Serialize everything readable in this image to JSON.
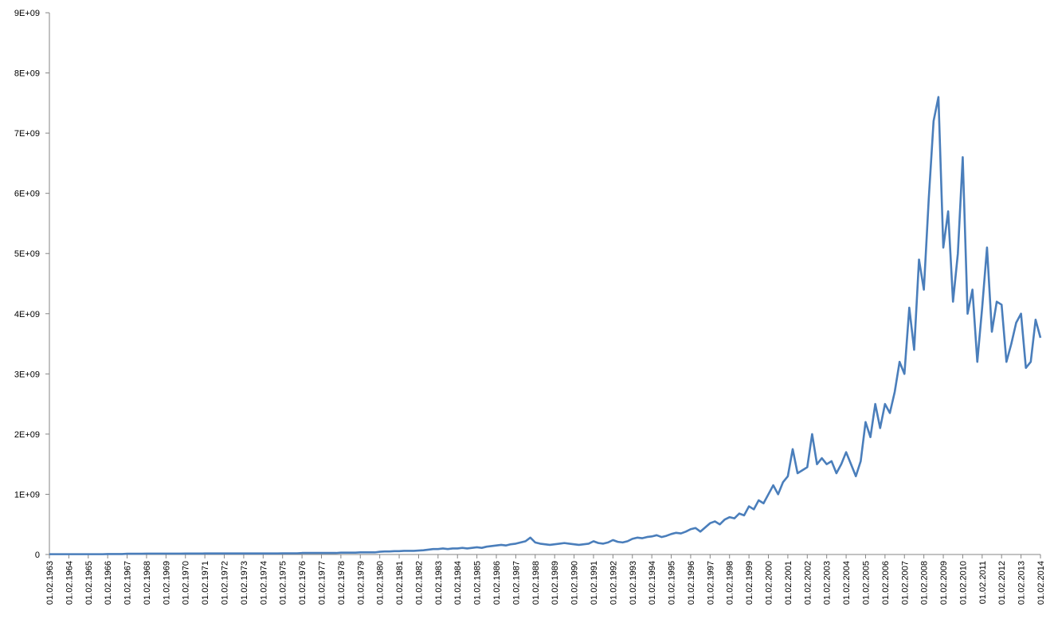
{
  "chart_data": {
    "type": "line",
    "categories": [
      "01.02.1963",
      null,
      null,
      null,
      "01.02.1964",
      null,
      null,
      null,
      "01.02.1965",
      null,
      null,
      null,
      "01.02.1966",
      null,
      null,
      null,
      "01.02.1967",
      null,
      null,
      null,
      "01.02.1968",
      null,
      null,
      null,
      "01.02.1969",
      null,
      null,
      null,
      "01.02.1970",
      null,
      null,
      null,
      "01.02.1971",
      null,
      null,
      null,
      "01.02.1972",
      null,
      null,
      null,
      "01.02.1973",
      null,
      null,
      null,
      "01.02.1974",
      null,
      null,
      null,
      "01.02.1975",
      null,
      null,
      null,
      "01.02.1976",
      null,
      null,
      null,
      "01.02.1977",
      null,
      null,
      null,
      "01.02.1978",
      null,
      null,
      null,
      "01.02.1979",
      null,
      null,
      null,
      "01.02.1980",
      null,
      null,
      null,
      "01.02.1981",
      null,
      null,
      null,
      "01.02.1982",
      null,
      null,
      null,
      "01.02.1983",
      null,
      null,
      null,
      "01.02.1984",
      null,
      null,
      null,
      "01.02.1985",
      null,
      null,
      null,
      "01.02.1986",
      null,
      null,
      null,
      "01.02.1987",
      null,
      null,
      null,
      "01.02.1988",
      null,
      null,
      null,
      "01.02.1989",
      null,
      null,
      null,
      "01.02.1990",
      null,
      null,
      null,
      "01.02.1991",
      null,
      null,
      null,
      "01.02.1992",
      null,
      null,
      null,
      "01.02.1993",
      null,
      null,
      null,
      "01.02.1994",
      null,
      null,
      null,
      "01.02.1995",
      null,
      null,
      null,
      "01.02.1996",
      null,
      null,
      null,
      "01.02.1997",
      null,
      null,
      null,
      "01.02.1998",
      null,
      null,
      null,
      "01.02.1999",
      null,
      null,
      null,
      "01.02.2000",
      null,
      null,
      null,
      "01.02.2001",
      null,
      null,
      null,
      "01.02.2002",
      null,
      null,
      null,
      "01.02.2003",
      null,
      null,
      null,
      "01.02.2004",
      null,
      null,
      null,
      "01.02.2005",
      null,
      null,
      null,
      "01.02.2006",
      null,
      null,
      null,
      "01.02.2007",
      null,
      null,
      null,
      "01.02.2008",
      null,
      null,
      null,
      "01.02.2009",
      null,
      null,
      null,
      "01.02.2010",
      null,
      null,
      null,
      "01.02.2011",
      null,
      null,
      null,
      "01.02.2012",
      null,
      null,
      null,
      "01.02.2013",
      null,
      null,
      null,
      "01.02.2014"
    ],
    "series": [
      {
        "color": "#4a7ebb",
        "values": [
          5000000.0,
          5000000.0,
          5000000.0,
          5000000.0,
          5000000.0,
          5000000.0,
          5000000.0,
          5000000.0,
          5000000.0,
          5000000.0,
          5000000.0,
          5000000.0,
          8000000.0,
          8000000.0,
          8000000.0,
          8000000.0,
          12000000.0,
          12000000.0,
          12000000.0,
          12000000.0,
          15000000.0,
          15000000.0,
          15000000.0,
          15000000.0,
          15000000.0,
          15000000.0,
          15000000.0,
          15000000.0,
          16000000.0,
          16000000.0,
          16000000.0,
          16000000.0,
          17000000.0,
          17000000.0,
          17000000.0,
          17000000.0,
          18000000.0,
          18000000.0,
          18000000.0,
          18000000.0,
          18000000.0,
          18000000.0,
          18000000.0,
          18000000.0,
          18000000.0,
          18000000.0,
          18000000.0,
          18000000.0,
          20000000.0,
          20000000.0,
          20000000.0,
          20000000.0,
          25000000.0,
          25000000.0,
          25000000.0,
          25000000.0,
          25000000.0,
          25000000.0,
          25000000.0,
          25000000.0,
          30000000.0,
          30000000.0,
          30000000.0,
          30000000.0,
          35000000.0,
          35000000.0,
          35000000.0,
          35000000.0,
          45000000.0,
          50000000.0,
          50000000.0,
          55000000.0,
          55000000.0,
          60000000.0,
          60000000.0,
          60000000.0,
          65000000.0,
          70000000.0,
          80000000.0,
          90000000.0,
          90000000.0,
          100000000.0,
          90000000.0,
          100000000.0,
          100000000.0,
          110000000.0,
          100000000.0,
          110000000.0,
          120000000.0,
          110000000.0,
          130000000.0,
          140000000.0,
          150000000.0,
          160000000.0,
          150000000.0,
          170000000.0,
          180000000.0,
          200000000.0,
          220000000.0,
          280000000.0,
          200000000.0,
          180000000.0,
          170000000.0,
          160000000.0,
          170000000.0,
          180000000.0,
          190000000.0,
          180000000.0,
          170000000.0,
          160000000.0,
          170000000.0,
          180000000.0,
          220000000.0,
          190000000.0,
          180000000.0,
          200000000.0,
          240000000.0,
          210000000.0,
          200000000.0,
          220000000.0,
          260000000.0,
          280000000.0,
          270000000.0,
          290000000.0,
          300000000.0,
          320000000.0,
          290000000.0,
          310000000.0,
          340000000.0,
          360000000.0,
          350000000.0,
          380000000.0,
          420000000.0,
          440000000.0,
          380000000.0,
          450000000.0,
          520000000.0,
          550000000.0,
          500000000.0,
          580000000.0,
          620000000.0,
          600000000.0,
          680000000.0,
          650000000.0,
          800000000.0,
          750000000.0,
          900000000.0,
          850000000.0,
          1000000000.0,
          1150000000.0,
          1000000000.0,
          1200000000.0,
          1300000000.0,
          1750000000.0,
          1350000000.0,
          1400000000.0,
          1450000000.0,
          2000000000.0,
          1500000000.0,
          1600000000.0,
          1500000000.0,
          1550000000.0,
          1350000000.0,
          1500000000.0,
          1700000000.0,
          1500000000.0,
          1300000000.0,
          1550000000.0,
          2200000000.0,
          1950000000.0,
          2500000000.0,
          2100000000.0,
          2500000000.0,
          2350000000.0,
          2700000000.0,
          3200000000.0,
          3000000000.0,
          4100000000.0,
          3400000000.0,
          4900000000.0,
          4400000000.0,
          5900000000.0,
          7200000000.0,
          7600000000.0,
          5100000000.0,
          5700000000.0,
          4200000000.0,
          5000000000.0,
          6600000000.0,
          4000000000.0,
          4400000000.0,
          3200000000.0,
          4100000000.0,
          5100000000.0,
          3700000000.0,
          4200000000.0,
          4150000000.0,
          3200000000.0,
          3500000000.0,
          3850000000.0,
          4000000000.0,
          3100000000.0,
          3200000000.0,
          3900000000.0,
          3600000000.0
        ]
      }
    ],
    "ylim": [
      0,
      9000000000
    ],
    "yticks": [
      0,
      {
        "value": 1000000000,
        "label": "1E+09"
      },
      {
        "value": 2000000000,
        "label": "2E+09"
      },
      {
        "value": 3000000000,
        "label": "3E+09"
      },
      {
        "value": 4000000000,
        "label": "4E+09"
      },
      {
        "value": 5000000000,
        "label": "5E+09"
      },
      {
        "value": 6000000000,
        "label": "6E+09"
      },
      {
        "value": 7000000000,
        "label": "7E+09"
      },
      {
        "value": 8000000000,
        "label": "8E+09"
      },
      {
        "value": 9000000000,
        "label": "9E+09"
      }
    ],
    "grid": false
  }
}
